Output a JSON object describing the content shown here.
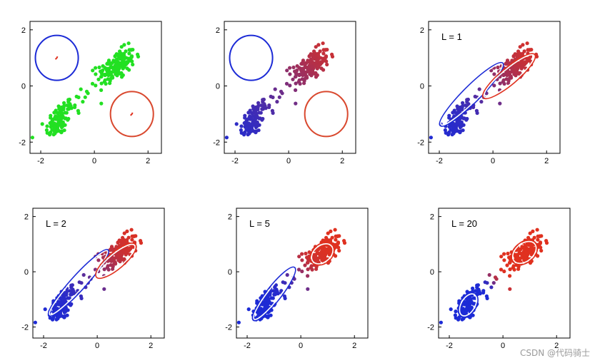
{
  "chart_data": {
    "type": "scatter",
    "description_panels": [
      {
        "label": "",
        "step": "data"
      },
      {
        "label": "",
        "step": "init"
      },
      {
        "label": "L = 1",
        "step": "iter"
      },
      {
        "label": "L = 2",
        "step": "iter"
      },
      {
        "label": "L = 5",
        "step": "iter"
      },
      {
        "label": "L = 20",
        "step": "iter"
      }
    ],
    "xlim": [
      -2.4,
      2.5
    ],
    "ylim": [
      -2.4,
      2.3
    ],
    "xticks": [
      "-2",
      "0",
      "2"
    ],
    "yticks": [
      "2",
      "0",
      "-2"
    ],
    "xtick_values": [
      -2,
      0,
      2
    ],
    "ytick_values": [
      2,
      0,
      -2
    ],
    "clusters": [
      {
        "name": "",
        "center": [
          -1.3,
          -1.2
        ],
        "spread": [
          0.25,
          0.35
        ],
        "count": 100
      },
      {
        "name": "",
        "center": [
          0.8,
          0.7
        ],
        "spread": [
          0.35,
          0.3
        ],
        "count": 160
      }
    ],
    "colors": {
      "data": "#22e022",
      "blue": "#1c2bd6",
      "red": "#e0311f",
      "red_circle": "#d9482e",
      "ellipse_white": "#ffffff",
      "frame": "#000000"
    },
    "init_circles": [
      {
        "center": [
          -1.4,
          1.0
        ],
        "radius": 0.8,
        "color": "blue"
      },
      {
        "center": [
          1.4,
          -1.0
        ],
        "radius": 0.8,
        "color": "red"
      }
    ],
    "ellipses": {
      "L = 1": [
        {
          "center": [
            -0.8,
            -0.3
          ],
          "rx": 1.6,
          "ry": 0.25,
          "angle": 45,
          "color": "blue"
        },
        {
          "center": [
            0.6,
            0.35
          ],
          "rx": 1.2,
          "ry": 0.25,
          "angle": 40,
          "color": "red"
        }
      ],
      "L = 2": [
        {
          "center": [
            -0.7,
            -0.4
          ],
          "rx": 1.6,
          "ry": 0.22,
          "angle": 48,
          "color": "blue"
        },
        {
          "center": [
            0.7,
            0.4
          ],
          "rx": 0.9,
          "ry": 0.25,
          "angle": 40,
          "color": "red"
        }
      ],
      "L = 5": [
        {
          "center": [
            -1.0,
            -0.8
          ],
          "rx": 1.2,
          "ry": 0.22,
          "angle": 52,
          "color": "blue"
        },
        {
          "center": [
            0.8,
            0.65
          ],
          "rx": 0.45,
          "ry": 0.3,
          "angle": 40,
          "color": "red"
        }
      ],
      "L = 20": [
        {
          "center": [
            -1.3,
            -1.2
          ],
          "rx": 0.45,
          "ry": 0.25,
          "angle": 60,
          "color": "blue"
        },
        {
          "center": [
            0.8,
            0.7
          ],
          "rx": 0.5,
          "ry": 0.32,
          "angle": 40,
          "color": "red"
        }
      ]
    }
  },
  "watermark": "CSDN @代码骑士"
}
